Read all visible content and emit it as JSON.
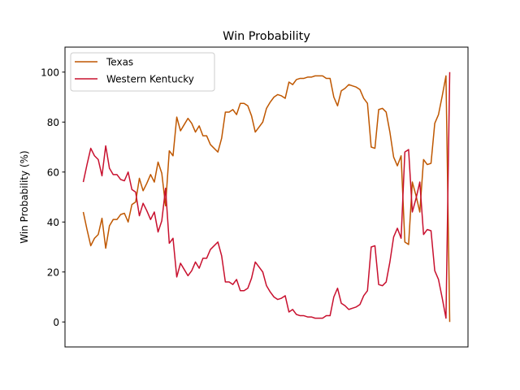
{
  "chart_data": {
    "type": "line",
    "title": "Win Probability",
    "xlabel": "",
    "ylabel": "Win Probability (%)",
    "ylim": [
      -10,
      110
    ],
    "yticks": [
      0,
      20,
      40,
      60,
      80,
      100
    ],
    "grid": false,
    "legend_position": "top-left",
    "series": [
      {
        "name": "Texas",
        "color": "#BF5700",
        "values": [
          44,
          37,
          30.5,
          33.5,
          35,
          41.5,
          29.5,
          38.5,
          41,
          41,
          43,
          43.5,
          40,
          47,
          48,
          57.5,
          52.5,
          55.5,
          59,
          56,
          64,
          59.5,
          46.5,
          68.5,
          66.5,
          82,
          76.5,
          79,
          81.5,
          79.5,
          76,
          78.5,
          74.5,
          74.5,
          71,
          69.5,
          68,
          73.5,
          84,
          84,
          85,
          83,
          87.5,
          87.5,
          86.5,
          82.5,
          76,
          78,
          80,
          85.5,
          88,
          90,
          91,
          90.5,
          89.5,
          96,
          95,
          97,
          97.5,
          97.5,
          98,
          98,
          98.5,
          98.5,
          98.5,
          97.5,
          97.5,
          90,
          86.5,
          92.5,
          93.5,
          95,
          94.5,
          94,
          93,
          89.5,
          87.5,
          70,
          69.5,
          85,
          85.5,
          84,
          76,
          66,
          62.5,
          66.5,
          32,
          31,
          56,
          50.5,
          44,
          65,
          63,
          63.5,
          79.5,
          83,
          90.5,
          98.5,
          0
        ]
      },
      {
        "name": "Western Kentucky",
        "color": "#C8102E",
        "values": [
          56,
          63,
          69.5,
          66.5,
          65,
          58.5,
          70.5,
          61.5,
          59,
          59,
          57,
          56.5,
          60,
          53,
          52,
          42.5,
          47.5,
          44.5,
          41,
          44,
          36,
          40.5,
          53.5,
          31.5,
          33.5,
          18,
          23.5,
          21,
          18.5,
          20.5,
          24,
          21.5,
          25.5,
          25.5,
          29,
          30.5,
          32,
          26.5,
          16,
          16,
          15,
          17,
          12.5,
          12.5,
          13.5,
          17.5,
          24,
          22,
          20,
          14.5,
          12,
          10,
          9,
          9.5,
          10.5,
          4,
          5,
          3,
          2.5,
          2.5,
          2,
          2,
          1.5,
          1.5,
          1.5,
          2.5,
          2.5,
          10,
          13.5,
          7.5,
          6.5,
          5,
          5.5,
          6,
          7,
          10.5,
          12.5,
          30,
          30.5,
          15,
          14.5,
          16,
          24,
          34,
          37.5,
          33.5,
          68,
          69,
          44,
          49.5,
          56,
          35,
          37,
          36.5,
          20.5,
          17,
          9.5,
          1.5,
          100
        ]
      }
    ]
  }
}
